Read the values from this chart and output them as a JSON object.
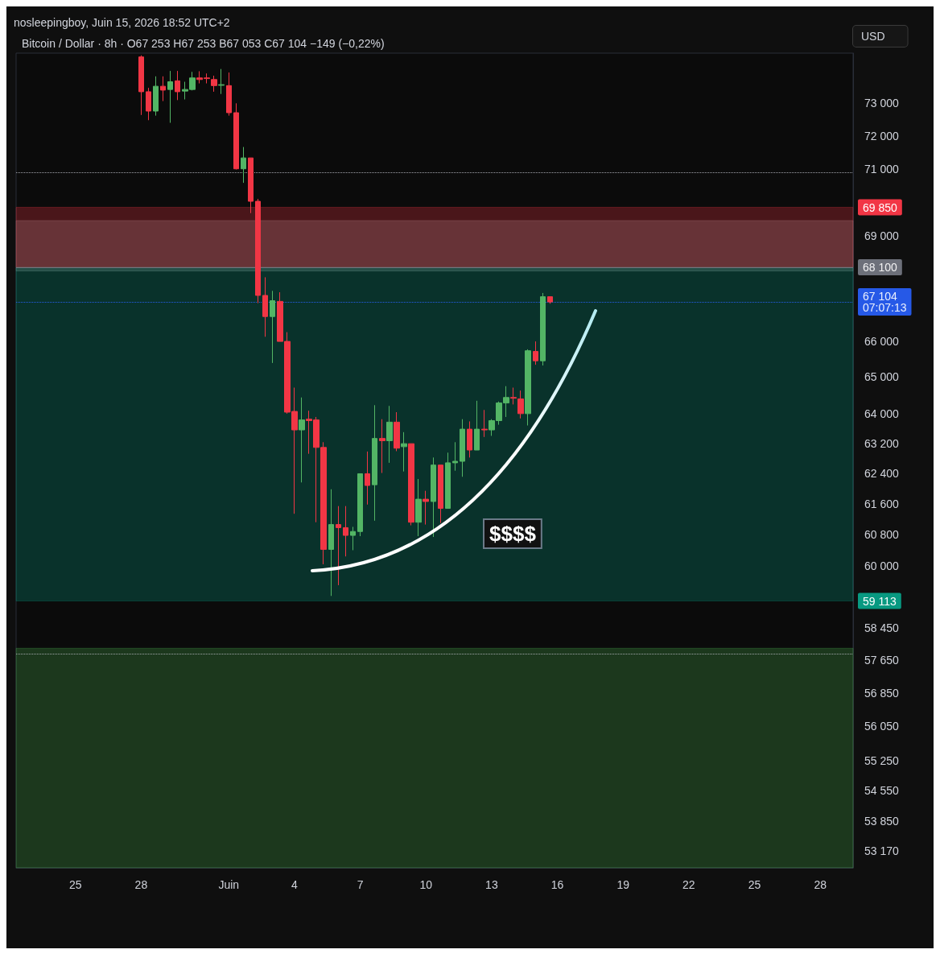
{
  "chart_data": {
    "type": "candlestick",
    "title": "Bitcoin / Dollar · 8h · O67 253 H67 253 B67 053 C67 104 −149 (−0,22%)",
    "subtitle": "nosleepingboy, Juin 15, 2026 18:52 UTC+2",
    "ylabel": "USD",
    "annotations": [
      "$$$$"
    ],
    "x": [
      "2026-05-28T00:00",
      "2026-05-28T08:00",
      "2026-05-28T16:00",
      "2026-05-29T00:00",
      "2026-05-29T08:00",
      "2026-05-29T16:00",
      "2026-05-30T00:00",
      "2026-05-30T08:00",
      "2026-05-30T16:00",
      "2026-05-31T00:00",
      "2026-05-31T08:00",
      "2026-05-31T16:00",
      "2026-06-01T00:00",
      "2026-06-01T08:00",
      "2026-06-01T16:00",
      "2026-06-02T00:00",
      "2026-06-02T08:00",
      "2026-06-02T16:00",
      "2026-06-03T00:00",
      "2026-06-03T08:00",
      "2026-06-03T16:00",
      "2026-06-04T00:00",
      "2026-06-04T08:00",
      "2026-06-04T16:00",
      "2026-06-05T00:00",
      "2026-06-05T08:00",
      "2026-06-05T16:00",
      "2026-06-06T00:00",
      "2026-06-06T08:00",
      "2026-06-06T16:00",
      "2026-06-07T00:00",
      "2026-06-07T08:00",
      "2026-06-07T16:00",
      "2026-06-08T00:00",
      "2026-06-08T08:00",
      "2026-06-08T16:00",
      "2026-06-09T00:00",
      "2026-06-09T08:00",
      "2026-06-09T16:00",
      "2026-06-10T00:00",
      "2026-06-10T08:00",
      "2026-06-10T16:00",
      "2026-06-11T00:00",
      "2026-06-11T08:00",
      "2026-06-11T16:00",
      "2026-06-12T00:00",
      "2026-06-12T08:00",
      "2026-06-12T16:00",
      "2026-06-13T00:00",
      "2026-06-13T08:00",
      "2026-06-13T16:00",
      "2026-06-14T00:00",
      "2026-06-14T08:00",
      "2026-06-14T16:00",
      "2026-06-15T00:00",
      "2026-06-15T08:00",
      "2026-06-15T16:00"
    ],
    "ohlc": [
      [
        74450,
        74500,
        72640,
        73360
      ],
      [
        73360,
        73480,
        72480,
        72760
      ],
      [
        72760,
        73840,
        72620,
        73530
      ],
      [
        73530,
        73840,
        73070,
        73410
      ],
      [
        73430,
        74010,
        72400,
        73670
      ],
      [
        73700,
        74010,
        73100,
        73360
      ],
      [
        73380,
        73670,
        73120,
        73430
      ],
      [
        73430,
        73980,
        73400,
        73790
      ],
      [
        73790,
        74000,
        73620,
        73740
      ],
      [
        73790,
        73930,
        73620,
        73770
      ],
      [
        73740,
        73860,
        73360,
        73550
      ],
      [
        73560,
        74070,
        73290,
        73580
      ],
      [
        73550,
        73960,
        72620,
        72710
      ],
      [
        72710,
        73000,
        70980,
        71000
      ],
      [
        71000,
        71660,
        70580,
        71330
      ],
      [
        71330,
        71330,
        69680,
        70030
      ],
      [
        70030,
        70100,
        67070,
        67290
      ],
      [
        67290,
        67810,
        66120,
        66690
      ],
      [
        66690,
        67420,
        65390,
        67140
      ],
      [
        67120,
        67380,
        65990,
        65990
      ],
      [
        65990,
        66250,
        64000,
        64040
      ],
      [
        64060,
        64710,
        61340,
        63560
      ],
      [
        63560,
        64440,
        62160,
        63830
      ],
      [
        63850,
        64080,
        62920,
        63810
      ],
      [
        63830,
        63910,
        61120,
        63090
      ],
      [
        63090,
        63230,
        60040,
        60420
      ],
      [
        60420,
        61980,
        59240,
        61060
      ],
      [
        61060,
        61540,
        59510,
        60980
      ],
      [
        60980,
        61540,
        60240,
        60780
      ],
      [
        60780,
        61000,
        60400,
        60880
      ],
      [
        60880,
        62390,
        60760,
        62390
      ],
      [
        62390,
        62980,
        61580,
        62080
      ],
      [
        62100,
        64230,
        61160,
        63330
      ],
      [
        63330,
        63850,
        62410,
        63270
      ],
      [
        63270,
        64210,
        62680,
        63770
      ],
      [
        63770,
        64040,
        62990,
        63070
      ],
      [
        63110,
        63500,
        62450,
        63190
      ],
      [
        63190,
        63190,
        61040,
        61120
      ],
      [
        61120,
        62250,
        60760,
        61720
      ],
      [
        61720,
        61940,
        61060,
        61660
      ],
      [
        61660,
        62820,
        60740,
        62620
      ],
      [
        62620,
        62620,
        61100,
        61480
      ],
      [
        61480,
        62950,
        61480,
        62680
      ],
      [
        62680,
        63230,
        62470,
        62720
      ],
      [
        62720,
        63850,
        62310,
        63580
      ],
      [
        63580,
        63790,
        62820,
        63020
      ],
      [
        63020,
        64350,
        63020,
        63580
      ],
      [
        63580,
        64100,
        63370,
        63560
      ],
      [
        63560,
        63850,
        63400,
        63810
      ],
      [
        63810,
        64330,
        63700,
        64290
      ],
      [
        64290,
        64750,
        63910,
        64440
      ],
      [
        64440,
        64710,
        64250,
        64420
      ],
      [
        64400,
        64630,
        63870,
        64000
      ],
      [
        64000,
        65770,
        63680,
        65730
      ],
      [
        65710,
        65990,
        65340,
        65450
      ],
      [
        65450,
        67360,
        65320,
        67253
      ],
      [
        67253,
        67253,
        67053,
        67104
      ]
    ],
    "colors": [
      "#f23645",
      "#f23645",
      "#53b565",
      "#f23645",
      "#53b565",
      "#f23645",
      "#53b565",
      "#53b565",
      "#f23645",
      "#f23645",
      "#f23645",
      "#53b565",
      "#f23645",
      "#f23645",
      "#53b565",
      "#f23645",
      "#f23645",
      "#f23645",
      "#53b565",
      "#f23645",
      "#f23645",
      "#f23645",
      "#53b565",
      "#f23645",
      "#f23645",
      "#f23645",
      "#53b565",
      "#f23645",
      "#f23645",
      "#53b565",
      "#53b565",
      "#f23645",
      "#53b565",
      "#f23645",
      "#53b565",
      "#f23645",
      "#53b565",
      "#f23645",
      "#53b565",
      "#f23645",
      "#53b565",
      "#f23645",
      "#53b565",
      "#53b565",
      "#53b565",
      "#f23645",
      "#53b565",
      "#f23645",
      "#53b565",
      "#53b565",
      "#53b565",
      "#f23645",
      "#f23645",
      "#53b565",
      "#f23645",
      "#53b565",
      "#f23645"
    ],
    "log": true,
    "xlim": [
      "2026-05-22T07:00",
      "2026-06-29T12:00"
    ],
    "xticks": [
      {
        "value": "2026-05-25",
        "label": "25"
      },
      {
        "value": "2026-05-28",
        "label": "28"
      },
      {
        "value": "2026-06-01",
        "label": "Juin"
      },
      {
        "value": "2026-06-04",
        "label": "4"
      },
      {
        "value": "2026-06-07",
        "label": "7"
      },
      {
        "value": "2026-06-10",
        "label": "10"
      },
      {
        "value": "2026-06-13",
        "label": "13"
      },
      {
        "value": "2026-06-16",
        "label": "16"
      },
      {
        "value": "2026-06-19",
        "label": "19"
      },
      {
        "value": "2026-06-22",
        "label": "22"
      },
      {
        "value": "2026-06-25",
        "label": "25"
      },
      {
        "value": "2026-06-28",
        "label": "28"
      }
    ],
    "ylim": [
      52790,
      74570
    ],
    "yticks": [
      {
        "value": 73000,
        "label": "73 000"
      },
      {
        "value": 72000,
        "label": "72 000"
      },
      {
        "value": 71000,
        "label": "71 000"
      },
      {
        "value": 69000,
        "label": "69 000"
      },
      {
        "value": 66000,
        "label": "66 000"
      },
      {
        "value": 65000,
        "label": "65 000"
      },
      {
        "value": 64000,
        "label": "64 000"
      },
      {
        "value": 63200,
        "label": "63 200"
      },
      {
        "value": 62400,
        "label": "62 400"
      },
      {
        "value": 61600,
        "label": "61 600"
      },
      {
        "value": 60800,
        "label": "60 800"
      },
      {
        "value": 60000,
        "label": "60 000"
      },
      {
        "value": 58450,
        "label": "58 450"
      },
      {
        "value": 57650,
        "label": "57 650"
      },
      {
        "value": 56850,
        "label": "56 850"
      },
      {
        "value": 56050,
        "label": "56 050"
      },
      {
        "value": 55250,
        "label": "55 250"
      },
      {
        "value": 54550,
        "label": "54 550"
      },
      {
        "value": 53850,
        "label": "53 850"
      },
      {
        "value": 53170,
        "label": "53 170"
      }
    ],
    "ref_lines": [
      {
        "axis": "y",
        "value": 70900,
        "line_style": "dotted",
        "color": "#b2b5be"
      },
      {
        "axis": "y",
        "value": 67104,
        "label": "67 104\n07:07:13",
        "line_style": "dotted",
        "color": "#2962ff"
      },
      {
        "axis": "y",
        "value": 68100,
        "label": "68 100",
        "line_style": "solid",
        "color": "#787b86"
      },
      {
        "axis": "y",
        "value": 57810,
        "line_style": "dotted",
        "color": "#b2b5be"
      }
    ],
    "bands": [
      {
        "axis": "y",
        "from": 67990,
        "to": 69460,
        "color": "#9a9a9a"
      },
      {
        "axis": "y",
        "from": 68100,
        "to": 69850,
        "label": "69 850",
        "color": "#f23645"
      },
      {
        "axis": "y",
        "from": 68100,
        "to": 59113,
        "label": "59 113",
        "color": "#089981"
      },
      {
        "axis": "y",
        "from": 57940,
        "to": 52790,
        "color": "#4caf50"
      }
    ]
  }
}
